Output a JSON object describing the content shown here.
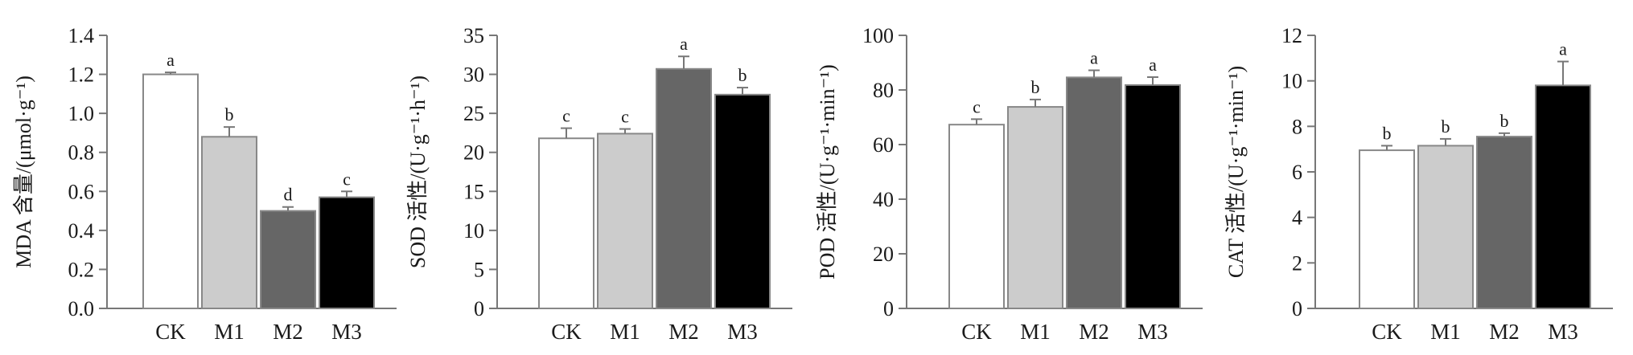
{
  "chart_data": [
    {
      "type": "bar",
      "ylabel": "MDA 含量/(μmol·g⁻¹)",
      "categories": [
        "CK",
        "M1",
        "M2",
        "M3"
      ],
      "values": [
        1.2,
        0.88,
        0.5,
        0.57
      ],
      "errors": [
        0.01,
        0.05,
        0.02,
        0.03
      ],
      "significance": [
        "a",
        "b",
        "d",
        "c"
      ],
      "ylim": [
        0,
        1.4
      ],
      "yticks": [
        0.0,
        0.2,
        0.4,
        0.6,
        0.8,
        1.0,
        1.2,
        1.4
      ],
      "ytick_labels": [
        "0.0",
        "0.2",
        "0.4",
        "0.6",
        "0.8",
        "1.0",
        "1.2",
        "1.4"
      ],
      "bar_colors": [
        "#ffffff",
        "#cccccc",
        "#666666",
        "#000000"
      ],
      "grid": false
    },
    {
      "type": "bar",
      "ylabel": "SOD 活性/(U·g⁻¹·h⁻¹)",
      "categories": [
        "CK",
        "M1",
        "M2",
        "M3"
      ],
      "values": [
        21.8,
        22.4,
        30.7,
        27.4
      ],
      "errors": [
        1.3,
        0.6,
        1.6,
        0.9
      ],
      "significance": [
        "c",
        "c",
        "a",
        "b"
      ],
      "ylim": [
        0,
        35
      ],
      "yticks": [
        0,
        5,
        10,
        15,
        20,
        25,
        30,
        35
      ],
      "ytick_labels": [
        "0",
        "5",
        "10",
        "15",
        "20",
        "25",
        "30",
        "35"
      ],
      "bar_colors": [
        "#ffffff",
        "#cccccc",
        "#666666",
        "#000000"
      ],
      "grid": false
    },
    {
      "type": "bar",
      "ylabel": "POD 活性/(U·g⁻¹·min⁻¹)",
      "categories": [
        "CK",
        "M1",
        "M2",
        "M3"
      ],
      "values": [
        67.3,
        73.8,
        84.6,
        81.8
      ],
      "errors": [
        2.0,
        2.7,
        2.6,
        2.9
      ],
      "significance": [
        "c",
        "b",
        "a",
        "a"
      ],
      "ylim": [
        0,
        100
      ],
      "yticks": [
        0,
        20,
        40,
        60,
        80,
        100
      ],
      "ytick_labels": [
        "0",
        "20",
        "40",
        "60",
        "80",
        "100"
      ],
      "bar_colors": [
        "#ffffff",
        "#cccccc",
        "#666666",
        "#000000"
      ],
      "grid": false
    },
    {
      "type": "bar",
      "ylabel": "CAT 活性/(U·g⁻¹·min⁻¹)",
      "categories": [
        "CK",
        "M1",
        "M2",
        "M3"
      ],
      "values": [
        6.95,
        7.15,
        7.55,
        9.8
      ],
      "errors": [
        0.2,
        0.3,
        0.15,
        1.05
      ],
      "significance": [
        "b",
        "b",
        "b",
        "a"
      ],
      "ylim": [
        0,
        12
      ],
      "yticks": [
        0,
        2,
        4,
        6,
        8,
        10,
        12
      ],
      "ytick_labels": [
        "0",
        "2",
        "4",
        "6",
        "8",
        "10",
        "12"
      ],
      "bar_colors": [
        "#ffffff",
        "#cccccc",
        "#666666",
        "#000000"
      ],
      "grid": false
    }
  ]
}
